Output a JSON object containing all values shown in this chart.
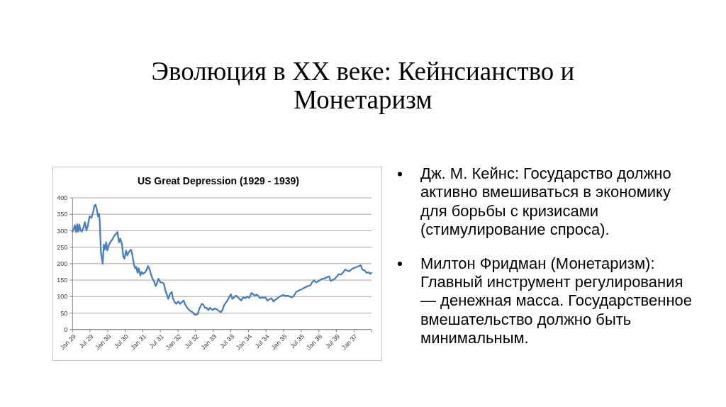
{
  "chart_data": {
    "type": "line",
    "title": "US Great Depression (1929 - 1939)",
    "annotations": [
      "Эволюция в XX веке: Кейнсианство и Монетаризм",
      "Дж. М. Кейнс: Государство должно активно вмешиваться в экономику для борьбы с кризисами (стимулирование спроса).",
      "Милтон Фридман (Монетаризм): Главный инструмент регулирования — денежная масса. Государственное вмешательство должно быть минимальным."
    ],
    "x": [
      "1929-01-01",
      "1929-01-08",
      "1929-01-25",
      "1929-02-07",
      "1929-02-19",
      "1929-03-01",
      "1929-03-13",
      "1929-03-25",
      "1929-04-07",
      "1929-04-22",
      "1929-05-09",
      "1929-05-26",
      "1929-06-08",
      "1929-06-27",
      "1929-07-16",
      "1929-08-04",
      "1929-08-16",
      "1929-08-28",
      "1929-09-10",
      "1929-09-22",
      "1929-10-04",
      "1929-10-11",
      "1929-10-23",
      "1929-11-10",
      "1929-11-22",
      "1929-12-04",
      "1929-12-16",
      "1929-12-29",
      "1930-01-15",
      "1930-02-05",
      "1930-02-16",
      "1930-02-27",
      "1930-03-18",
      "1930-04-12",
      "1930-04-29",
      "1930-05-11",
      "1930-05-28",
      "1930-06-12",
      "1930-06-24",
      "1930-07-11",
      "1930-07-24",
      "1930-08-10",
      "1930-08-30",
      "1930-09-12",
      "1930-10-01",
      "1930-10-13",
      "1930-10-25",
      "1930-11-07",
      "1930-11-19",
      "1930-12-06",
      "1930-12-18",
      "1931-01-03",
      "1931-01-25",
      "1931-02-11",
      "1931-02-23",
      "1931-03-13",
      "1931-03-25",
      "1931-04-12",
      "1931-04-27",
      "1931-05-14",
      "1931-05-26",
      "1931-06-12",
      "1931-07-02",
      "1931-07-21",
      "1931-08-08",
      "1931-08-20",
      "1931-09-07",
      "1931-09-21",
      "1931-10-08",
      "1931-10-28",
      "1931-11-07",
      "1931-11-27",
      "1931-12-14",
      "1932-01-03",
      "1932-01-22",
      "1932-02-09",
      "1932-02-28",
      "1932-03-16",
      "1932-04-10",
      "1932-05-04",
      "1932-05-28",
      "1932-06-15",
      "1932-07-04",
      "1932-07-24",
      "1932-08-10",
      "1932-09-04",
      "1932-09-21",
      "1932-10-06",
      "1932-10-23",
      "1932-11-10",
      "1932-11-29",
      "1932-12-23",
      "1933-01-18",
      "1933-02-11",
      "1933-03-06",
      "1933-03-23",
      "1933-04-07",
      "1933-04-24",
      "1933-05-14",
      "1933-05-31",
      "1933-06-18",
      "1933-07-02",
      "1933-07-19",
      "1933-08-06",
      "1933-08-25",
      "1933-09-12",
      "1933-10-01",
      "1933-10-18",
      "1933-11-07",
      "1933-11-27",
      "1933-12-19",
      "1934-01-08",
      "1934-02-02",
      "1934-02-18",
      "1934-03-08",
      "1934-03-28",
      "1934-04-14",
      "1934-05-02",
      "1934-05-21",
      "1934-06-10",
      "1934-06-27",
      "1934-07-14",
      "1934-08-03",
      "1934-08-28",
      "1934-09-17",
      "1934-10-04",
      "1934-10-21",
      "1934-11-10",
      "1934-12-04",
      "1934-12-29",
      "1935-01-22",
      "1935-02-16",
      "1935-03-06",
      "1935-03-30",
      "1935-04-17",
      "1935-05-11",
      "1935-06-05",
      "1935-06-29",
      "1935-07-24",
      "1935-08-18",
      "1935-09-12",
      "1935-10-06",
      "1935-10-23",
      "1935-11-12",
      "1935-12-02",
      "1935-12-24",
      "1936-01-13",
      "1936-02-07",
      "1936-03-01",
      "1936-03-26",
      "1936-04-19",
      "1936-05-01",
      "1936-05-21",
      "1936-06-15",
      "1936-07-09",
      "1936-07-26",
      "1936-08-20",
      "1936-09-14",
      "1936-10-01",
      "1936-10-21",
      "1936-11-15",
      "1936-12-09",
      "1937-01-03",
      "1937-01-28",
      "1937-03-11",
      "1937-03-28",
      "1937-04-22",
      "1937-05-11",
      "1937-05-28",
      "1937-06-17",
      "1937-06-29"
    ],
    "values": [
      297,
      301,
      317,
      296,
      320,
      297,
      319,
      301,
      297,
      308,
      326,
      301,
      315,
      344,
      339,
      358,
      376,
      379,
      366,
      344,
      351,
      326,
      233,
      200,
      258,
      243,
      265,
      240,
      258,
      269,
      272,
      279,
      287,
      296,
      265,
      276,
      261,
      222,
      215,
      240,
      225,
      236,
      243,
      229,
      197,
      186,
      190,
      172,
      186,
      164,
      175,
      169,
      174,
      182,
      193,
      182,
      168,
      154,
      146,
      132,
      139,
      154,
      143,
      143,
      139,
      121,
      107,
      93,
      107,
      114,
      96,
      83,
      78,
      85,
      78,
      83,
      88,
      75,
      64,
      57,
      53,
      47,
      45,
      47,
      64,
      78,
      75,
      66,
      66,
      59,
      66,
      59,
      64,
      60,
      55,
      53,
      60,
      75,
      82,
      90,
      100,
      107,
      93,
      98,
      103,
      98,
      93,
      88,
      98,
      95,
      100,
      96,
      111,
      107,
      103,
      106,
      102,
      95,
      98,
      96,
      98,
      88,
      91,
      95,
      85,
      90,
      93,
      98,
      102,
      105,
      102,
      103,
      100,
      98,
      102,
      114,
      118,
      121,
      125,
      129,
      132,
      134,
      143,
      149,
      143,
      146,
      150,
      154,
      155,
      159,
      161,
      148,
      150,
      154,
      162,
      168,
      167,
      175,
      182,
      179,
      177,
      184,
      187,
      190,
      195,
      182,
      179,
      172,
      174,
      169,
      172
    ],
    "color": "#4a7ebb",
    "xlim": [
      "1929-01-01",
      "1937-07-01"
    ],
    "xticks": [
      {
        "value": "1929-01",
        "label": "Jan 29"
      },
      {
        "value": "1929-07",
        "label": "Jul 29"
      },
      {
        "value": "1930-01",
        "label": "Jan 30"
      },
      {
        "value": "1930-07",
        "label": "Jul 30"
      },
      {
        "value": "1931-01",
        "label": "Jan 31"
      },
      {
        "value": "1931-07",
        "label": "Jul 31"
      },
      {
        "value": "1932-01",
        "label": "Jan 32"
      },
      {
        "value": "1932-07",
        "label": "Jul 32"
      },
      {
        "value": "1933-01",
        "label": "Jan 33"
      },
      {
        "value": "1933-07",
        "label": "Jul 33"
      },
      {
        "value": "1934-01",
        "label": "Jan 34"
      },
      {
        "value": "1934-07",
        "label": "Jul 34"
      },
      {
        "value": "1935-01",
        "label": "Jan 35"
      },
      {
        "value": "1935-07",
        "label": "Jul 35"
      },
      {
        "value": "1936-01",
        "label": "Jan 36"
      },
      {
        "value": "1936-07",
        "label": "Jul 36"
      },
      {
        "value": "1937-01",
        "label": "Jan 37"
      },
      {
        "value": "1937-07",
        "label": null
      }
    ],
    "ylim": [
      0,
      400
    ],
    "yticks": [
      0,
      50,
      100,
      150,
      200,
      250,
      300,
      350,
      400
    ],
    "grid": "y"
  }
}
